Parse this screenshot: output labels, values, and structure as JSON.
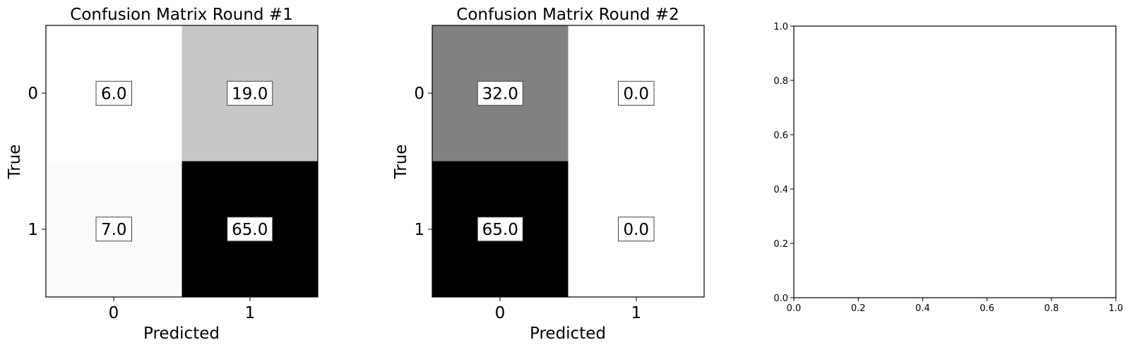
{
  "chart_data": [
    {
      "type": "heatmap",
      "title": "Confusion Matrix Round #1",
      "xlabel": "Predicted",
      "ylabel": "True",
      "x_ticks": [
        "0",
        "1"
      ],
      "y_ticks": [
        "0",
        "1"
      ],
      "values": [
        [
          6.0,
          19.0
        ],
        [
          7.0,
          65.0
        ]
      ],
      "cell_labels": [
        [
          "6.0",
          "19.0"
        ],
        [
          "7.0",
          "65.0"
        ]
      ],
      "colormap": "greys",
      "color_range": [
        6.0,
        65.0
      ]
    },
    {
      "type": "heatmap",
      "title": "Confusion Matrix Round #2",
      "xlabel": "Predicted",
      "ylabel": "True",
      "x_ticks": [
        "0",
        "1"
      ],
      "y_ticks": [
        "0",
        "1"
      ],
      "values": [
        [
          32.0,
          0.0
        ],
        [
          65.0,
          0.0
        ]
      ],
      "cell_labels": [
        [
          "32.0",
          "0.0"
        ],
        [
          "65.0",
          "0.0"
        ]
      ],
      "colormap": "greys",
      "color_range": [
        0.0,
        65.0
      ]
    },
    {
      "type": "scatter",
      "title": "",
      "xlabel": "",
      "ylabel": "",
      "xlim": [
        0.0,
        1.0
      ],
      "ylim": [
        0.0,
        1.0
      ],
      "x_ticks": [
        "0.0",
        "0.2",
        "0.4",
        "0.6",
        "0.8",
        "1.0"
      ],
      "y_ticks": [
        "0.0",
        "0.2",
        "0.4",
        "0.6",
        "0.8",
        "1.0"
      ],
      "series": []
    }
  ]
}
